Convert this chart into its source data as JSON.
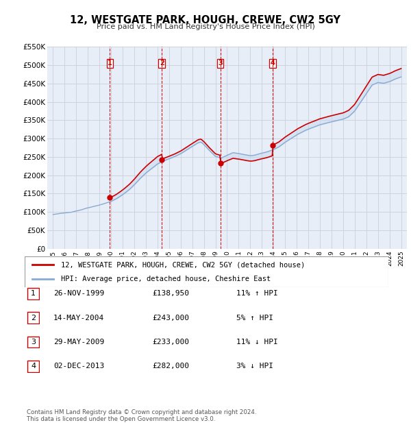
{
  "title": "12, WESTGATE PARK, HOUGH, CREWE, CW2 5GY",
  "subtitle": "Price paid vs. HM Land Registry's House Price Index (HPI)",
  "ylim": [
    0,
    550000
  ],
  "yticks": [
    0,
    50000,
    100000,
    150000,
    200000,
    250000,
    300000,
    350000,
    400000,
    450000,
    500000,
    550000
  ],
  "ytick_labels": [
    "£0",
    "£50K",
    "£100K",
    "£150K",
    "£200K",
    "£250K",
    "£300K",
    "£350K",
    "£400K",
    "£450K",
    "£500K",
    "£550K"
  ],
  "xlim_start": 1994.5,
  "xlim_end": 2025.5,
  "background_color": "#ffffff",
  "plot_bg_color": "#e8eef8",
  "grid_color": "#d0d8e8",
  "sale_color": "#cc0000",
  "hpi_color": "#88aad0",
  "hpi_fill_color": "#c8d8ee",
  "sale_label": "12, WESTGATE PARK, HOUGH, CREWE, CW2 5GY (detached house)",
  "hpi_label": "HPI: Average price, detached house, Cheshire East",
  "transactions": [
    {
      "num": 1,
      "date": "26-NOV-1999",
      "price": 138950,
      "pct": "11%",
      "dir": "↑",
      "year": 1999.9
    },
    {
      "num": 2,
      "date": "14-MAY-2004",
      "price": 243000,
      "pct": "5%",
      "dir": "↑",
      "year": 2004.37
    },
    {
      "num": 3,
      "date": "29-MAY-2009",
      "price": 233000,
      "pct": "11%",
      "dir": "↓",
      "year": 2009.41
    },
    {
      "num": 4,
      "date": "02-DEC-2013",
      "price": 282000,
      "pct": "3%",
      "dir": "↓",
      "year": 2013.92
    }
  ],
  "footnote1": "Contains HM Land Registry data © Crown copyright and database right 2024.",
  "footnote2": "This data is licensed under the Open Government Licence v3.0.",
  "hpi_key_points": [
    [
      1995.0,
      93000
    ],
    [
      1995.5,
      95000
    ],
    [
      1996.0,
      97000
    ],
    [
      1996.5,
      99000
    ],
    [
      1997.0,
      103000
    ],
    [
      1997.5,
      107000
    ],
    [
      1998.0,
      112000
    ],
    [
      1998.5,
      116000
    ],
    [
      1999.0,
      120000
    ],
    [
      1999.5,
      125000
    ],
    [
      2000.0,
      130000
    ],
    [
      2000.5,
      138000
    ],
    [
      2001.0,
      148000
    ],
    [
      2001.5,
      160000
    ],
    [
      2002.0,
      175000
    ],
    [
      2002.5,
      192000
    ],
    [
      2003.0,
      207000
    ],
    [
      2003.5,
      220000
    ],
    [
      2004.0,
      232000
    ],
    [
      2004.5,
      240000
    ],
    [
      2005.0,
      246000
    ],
    [
      2005.5,
      252000
    ],
    [
      2006.0,
      260000
    ],
    [
      2006.5,
      270000
    ],
    [
      2007.0,
      280000
    ],
    [
      2007.5,
      290000
    ],
    [
      2007.75,
      292000
    ],
    [
      2008.0,
      285000
    ],
    [
      2008.5,
      268000
    ],
    [
      2009.0,
      252000
    ],
    [
      2009.5,
      248000
    ],
    [
      2010.0,
      255000
    ],
    [
      2010.5,
      262000
    ],
    [
      2011.0,
      260000
    ],
    [
      2011.5,
      257000
    ],
    [
      2012.0,
      254000
    ],
    [
      2012.5,
      256000
    ],
    [
      2013.0,
      260000
    ],
    [
      2013.5,
      264000
    ],
    [
      2014.0,
      270000
    ],
    [
      2014.5,
      278000
    ],
    [
      2015.0,
      290000
    ],
    [
      2015.5,
      300000
    ],
    [
      2016.0,
      310000
    ],
    [
      2016.5,
      318000
    ],
    [
      2017.0,
      326000
    ],
    [
      2017.5,
      332000
    ],
    [
      2018.0,
      338000
    ],
    [
      2018.5,
      342000
    ],
    [
      2019.0,
      346000
    ],
    [
      2019.5,
      350000
    ],
    [
      2020.0,
      353000
    ],
    [
      2020.5,
      360000
    ],
    [
      2021.0,
      375000
    ],
    [
      2021.5,
      398000
    ],
    [
      2022.0,
      422000
    ],
    [
      2022.5,
      445000
    ],
    [
      2023.0,
      452000
    ],
    [
      2023.5,
      450000
    ],
    [
      2024.0,
      455000
    ],
    [
      2024.5,
      462000
    ],
    [
      2025.0,
      468000
    ]
  ]
}
